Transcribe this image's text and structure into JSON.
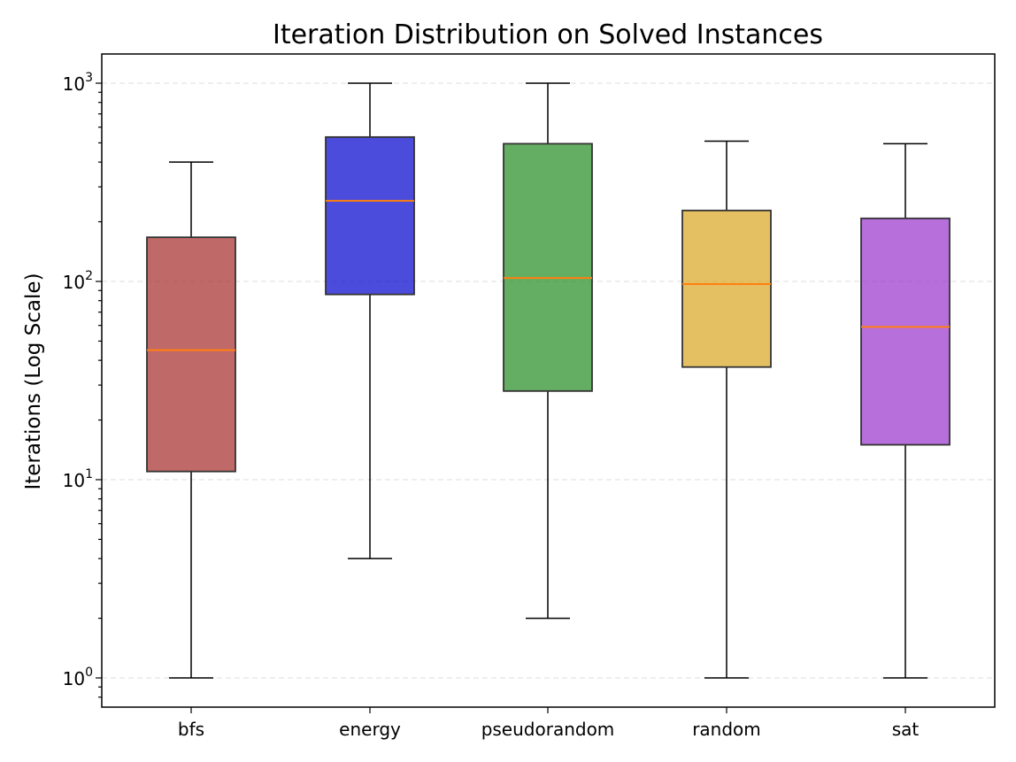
{
  "chart_data": {
    "type": "boxplot",
    "title": "Iteration Distribution on Solved Instances",
    "xlabel": "",
    "ylabel": "Iterations (Log Scale)",
    "yscale": "log",
    "ylim": [
      0.72,
      1380
    ],
    "y_ticks": [
      {
        "value": 1,
        "base": "10",
        "exp": "0"
      },
      {
        "value": 10,
        "base": "10",
        "exp": "1"
      },
      {
        "value": 100,
        "base": "10",
        "exp": "2"
      },
      {
        "value": 1000,
        "base": "10",
        "exp": "3"
      }
    ],
    "grid": "y-major-dashed",
    "series": [
      {
        "name": "bfs",
        "color": "#a52a2a",
        "whisker_low": 1,
        "q1": 11,
        "median": 45,
        "q3": 167,
        "whisker_high": 400
      },
      {
        "name": "energy",
        "color": "#0000cd",
        "whisker_low": 4,
        "q1": 86,
        "median": 255,
        "q3": 535,
        "whisker_high": 1000
      },
      {
        "name": "pseudorandom",
        "color": "#228b22",
        "whisker_low": 2,
        "q1": 28,
        "median": 104,
        "q3": 495,
        "whisker_high": 1000
      },
      {
        "name": "random",
        "color": "#daa520",
        "whisker_low": 1,
        "q1": 37,
        "median": 97,
        "q3": 228,
        "whisker_high": 510
      },
      {
        "name": "sat",
        "color": "#9932cc",
        "whisker_low": 1,
        "q1": 15,
        "median": 59,
        "q3": 208,
        "whisker_high": 495
      }
    ]
  }
}
